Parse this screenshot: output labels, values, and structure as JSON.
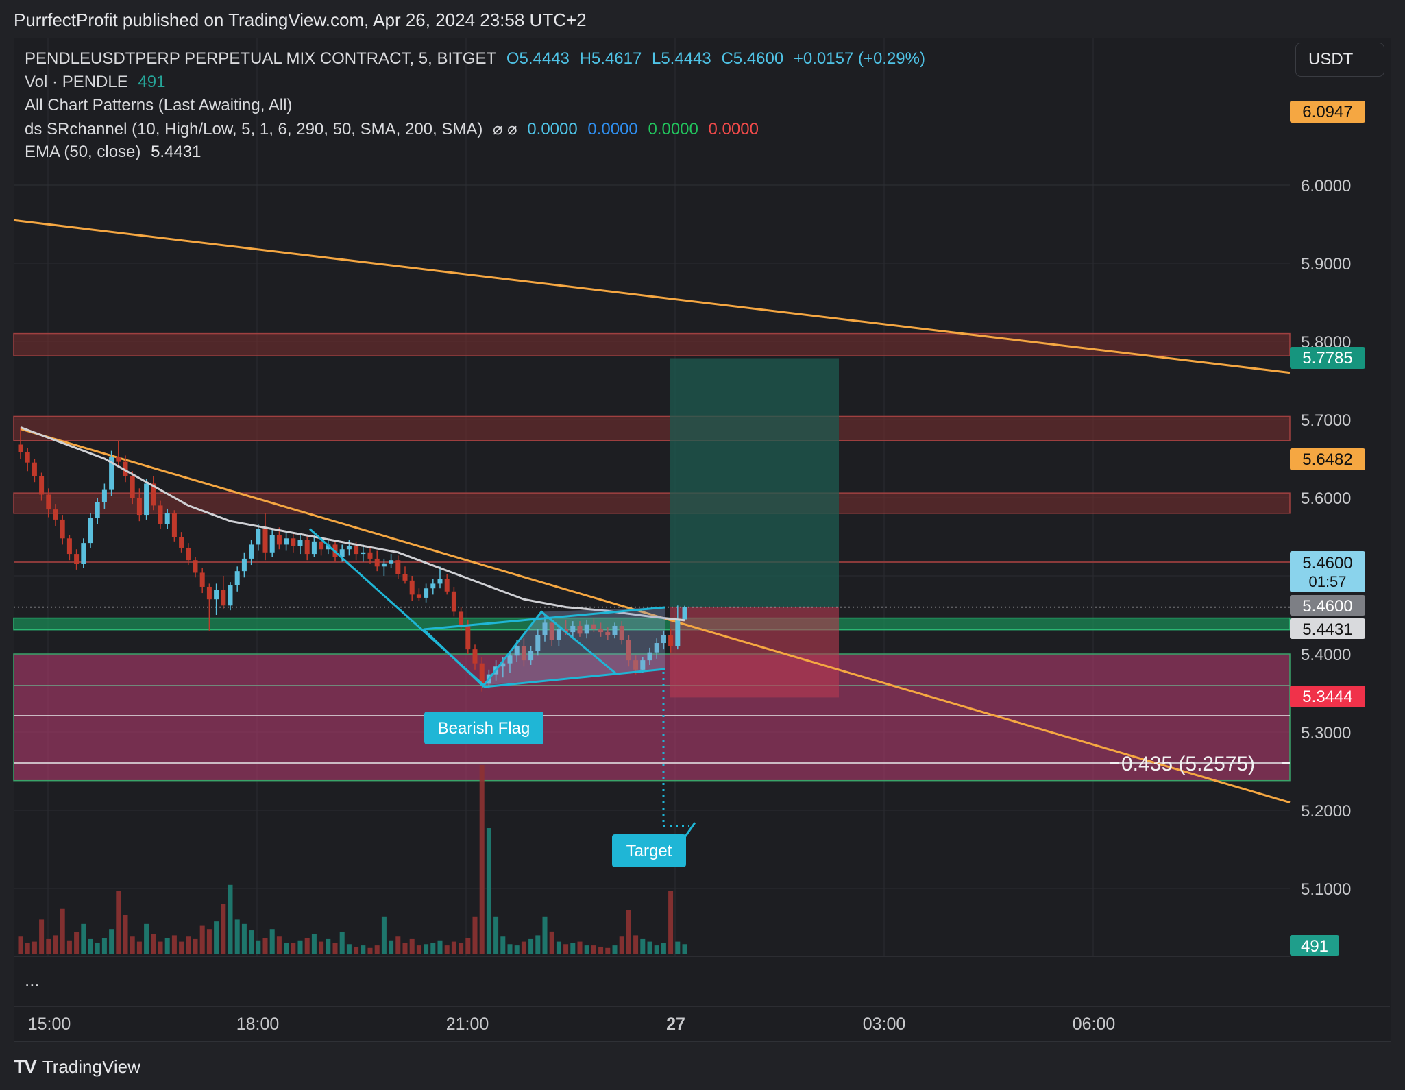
{
  "publisher": "PurrfectProfit published on TradingView.com, Apr 26, 2024 23:58 UTC+2",
  "header": {
    "symbol": "PENDLEUSDTPERP PERPETUAL MIX CONTRACT, 5, BITGET",
    "open": "O5.4443",
    "high": "H5.4617",
    "low": "L5.4443",
    "close": "C5.4600",
    "change": "+0.0157 (+0.29%)",
    "vol_label": "Vol · PENDLE",
    "vol_value": "491",
    "patterns": "All Chart Patterns (Last Awaiting, All)",
    "sr_label": "ds SRchannel (10, High/Low, 5, 1, 6, 290, 50, SMA, 200, SMA)",
    "sr_icons": "⌀ ⌀",
    "sr_v1": "0.0000",
    "sr_v2": "0.0000",
    "sr_v3": "0.0000",
    "sr_v4": "0.0000",
    "ema_label": "EMA (50, close)",
    "ema_value": "5.4431"
  },
  "currency": "USDT",
  "more": "...",
  "brand": "TradingView",
  "colors": {
    "up": "#5bc0de",
    "down": "#c0392b",
    "trendline": "#f5a742",
    "pattern": "#1fb6d6",
    "ema": "#cfd0d4",
    "support_band": "#b03a6e",
    "resistance_band": "#7a2f2f",
    "green_band": "#1a8a55",
    "long_profit": "#1e5b50",
    "long_stop": "#b73a52"
  },
  "chart_data": {
    "type": "candlestick",
    "timeframe": "5",
    "x_tick_labels": [
      "15:00",
      "18:00",
      "21:00",
      "27",
      "03:00",
      "06:00"
    ],
    "y_tick_labels": [
      "6.0000",
      "5.9000",
      "5.8000",
      "5.7000",
      "5.6000",
      "5.4000",
      "5.3000",
      "5.2000",
      "5.1000"
    ],
    "ylim": [
      5.0,
      6.2
    ],
    "price_labels": [
      {
        "text": "6.0947",
        "value": 6.0947,
        "color": "#f5a742"
      },
      {
        "text": "5.7785",
        "value": 5.7785,
        "color": "#16957e"
      },
      {
        "text": "5.6482",
        "value": 5.6482,
        "color": "#f5a742"
      },
      {
        "text": "5.4600",
        "value": 5.46,
        "color": "#8ad3ec",
        "sub": "01:57"
      },
      {
        "text": "5.4600",
        "value": 5.46,
        "color": "#7d7f85"
      },
      {
        "text": "5.4431",
        "value": 5.4431,
        "color": "#d9dadd"
      },
      {
        "text": "5.3444",
        "value": 5.3444,
        "color": "#f0324a"
      }
    ],
    "volume_label": "491",
    "fib_label": "0.435 (5.2575)",
    "pattern_label": "Bearish Flag",
    "target_label": "Target",
    "candles": [
      {
        "t": 0,
        "o": 5.668,
        "h": 5.69,
        "l": 5.65,
        "c": 5.658
      },
      {
        "t": 1,
        "o": 5.658,
        "h": 5.664,
        "l": 5.634,
        "c": 5.645
      },
      {
        "t": 2,
        "o": 5.645,
        "h": 5.65,
        "l": 5.62,
        "c": 5.628
      },
      {
        "t": 3,
        "o": 5.628,
        "h": 5.632,
        "l": 5.596,
        "c": 5.604
      },
      {
        "t": 4,
        "o": 5.604,
        "h": 5.612,
        "l": 5.575,
        "c": 5.585
      },
      {
        "t": 5,
        "o": 5.585,
        "h": 5.592,
        "l": 5.564,
        "c": 5.572
      },
      {
        "t": 6,
        "o": 5.572,
        "h": 5.578,
        "l": 5.54,
        "c": 5.548
      },
      {
        "t": 7,
        "o": 5.548,
        "h": 5.552,
        "l": 5.52,
        "c": 5.528
      },
      {
        "t": 8,
        "o": 5.528,
        "h": 5.534,
        "l": 5.508,
        "c": 5.515
      },
      {
        "t": 9,
        "o": 5.515,
        "h": 5.548,
        "l": 5.51,
        "c": 5.542
      },
      {
        "t": 10,
        "o": 5.542,
        "h": 5.58,
        "l": 5.536,
        "c": 5.574
      },
      {
        "t": 11,
        "o": 5.574,
        "h": 5.6,
        "l": 5.566,
        "c": 5.594
      },
      {
        "t": 12,
        "o": 5.594,
        "h": 5.618,
        "l": 5.586,
        "c": 5.61
      },
      {
        "t": 13,
        "o": 5.61,
        "h": 5.66,
        "l": 5.602,
        "c": 5.652
      },
      {
        "t": 14,
        "o": 5.652,
        "h": 5.672,
        "l": 5.64,
        "c": 5.646
      },
      {
        "t": 15,
        "o": 5.646,
        "h": 5.654,
        "l": 5.62,
        "c": 5.628
      },
      {
        "t": 16,
        "o": 5.628,
        "h": 5.634,
        "l": 5.592,
        "c": 5.6
      },
      {
        "t": 17,
        "o": 5.6,
        "h": 5.612,
        "l": 5.57,
        "c": 5.578
      },
      {
        "t": 18,
        "o": 5.578,
        "h": 5.624,
        "l": 5.572,
        "c": 5.618
      },
      {
        "t": 19,
        "o": 5.618,
        "h": 5.628,
        "l": 5.584,
        "c": 5.59
      },
      {
        "t": 20,
        "o": 5.59,
        "h": 5.596,
        "l": 5.56,
        "c": 5.566
      },
      {
        "t": 21,
        "o": 5.566,
        "h": 5.586,
        "l": 5.56,
        "c": 5.58
      },
      {
        "t": 22,
        "o": 5.58,
        "h": 5.584,
        "l": 5.544,
        "c": 5.55
      },
      {
        "t": 23,
        "o": 5.55,
        "h": 5.556,
        "l": 5.53,
        "c": 5.536
      },
      {
        "t": 24,
        "o": 5.536,
        "h": 5.542,
        "l": 5.514,
        "c": 5.52
      },
      {
        "t": 25,
        "o": 5.52,
        "h": 5.524,
        "l": 5.498,
        "c": 5.504
      },
      {
        "t": 26,
        "o": 5.504,
        "h": 5.51,
        "l": 5.478,
        "c": 5.486
      },
      {
        "t": 27,
        "o": 5.486,
        "h": 5.49,
        "l": 5.43,
        "c": 5.47
      },
      {
        "t": 28,
        "o": 5.47,
        "h": 5.49,
        "l": 5.45,
        "c": 5.482
      },
      {
        "t": 29,
        "o": 5.482,
        "h": 5.5,
        "l": 5.458,
        "c": 5.462
      },
      {
        "t": 30,
        "o": 5.462,
        "h": 5.492,
        "l": 5.456,
        "c": 5.488
      },
      {
        "t": 31,
        "o": 5.488,
        "h": 5.512,
        "l": 5.48,
        "c": 5.506
      },
      {
        "t": 32,
        "o": 5.506,
        "h": 5.53,
        "l": 5.498,
        "c": 5.522
      },
      {
        "t": 33,
        "o": 5.522,
        "h": 5.546,
        "l": 5.514,
        "c": 5.54
      },
      {
        "t": 34,
        "o": 5.54,
        "h": 5.566,
        "l": 5.532,
        "c": 5.56
      },
      {
        "t": 35,
        "o": 5.56,
        "h": 5.58,
        "l": 5.52,
        "c": 5.53
      },
      {
        "t": 36,
        "o": 5.53,
        "h": 5.56,
        "l": 5.524,
        "c": 5.552
      },
      {
        "t": 37,
        "o": 5.552,
        "h": 5.562,
        "l": 5.534,
        "c": 5.54
      },
      {
        "t": 38,
        "o": 5.54,
        "h": 5.556,
        "l": 5.532,
        "c": 5.548
      },
      {
        "t": 39,
        "o": 5.548,
        "h": 5.556,
        "l": 5.53,
        "c": 5.538
      },
      {
        "t": 40,
        "o": 5.538,
        "h": 5.554,
        "l": 5.528,
        "c": 5.546
      },
      {
        "t": 41,
        "o": 5.546,
        "h": 5.552,
        "l": 5.52,
        "c": 5.528
      },
      {
        "t": 42,
        "o": 5.528,
        "h": 5.552,
        "l": 5.524,
        "c": 5.544
      },
      {
        "t": 43,
        "o": 5.544,
        "h": 5.55,
        "l": 5.526,
        "c": 5.534
      },
      {
        "t": 44,
        "o": 5.534,
        "h": 5.546,
        "l": 5.528,
        "c": 5.54
      },
      {
        "t": 45,
        "o": 5.54,
        "h": 5.546,
        "l": 5.518,
        "c": 5.524
      },
      {
        "t": 46,
        "o": 5.524,
        "h": 5.54,
        "l": 5.518,
        "c": 5.534
      },
      {
        "t": 47,
        "o": 5.534,
        "h": 5.546,
        "l": 5.526,
        "c": 5.538
      },
      {
        "t": 48,
        "o": 5.538,
        "h": 5.544,
        "l": 5.52,
        "c": 5.528
      },
      {
        "t": 49,
        "o": 5.528,
        "h": 5.54,
        "l": 5.518,
        "c": 5.53
      },
      {
        "t": 50,
        "o": 5.53,
        "h": 5.538,
        "l": 5.516,
        "c": 5.522
      },
      {
        "t": 51,
        "o": 5.522,
        "h": 5.532,
        "l": 5.506,
        "c": 5.512
      },
      {
        "t": 52,
        "o": 5.512,
        "h": 5.522,
        "l": 5.5,
        "c": 5.516
      },
      {
        "t": 53,
        "o": 5.516,
        "h": 5.528,
        "l": 5.51,
        "c": 5.52
      },
      {
        "t": 54,
        "o": 5.52,
        "h": 5.526,
        "l": 5.496,
        "c": 5.502
      },
      {
        "t": 55,
        "o": 5.502,
        "h": 5.512,
        "l": 5.49,
        "c": 5.494
      },
      {
        "t": 56,
        "o": 5.494,
        "h": 5.5,
        "l": 5.468,
        "c": 5.476
      },
      {
        "t": 57,
        "o": 5.476,
        "h": 5.484,
        "l": 5.468,
        "c": 5.472
      },
      {
        "t": 58,
        "o": 5.472,
        "h": 5.49,
        "l": 5.466,
        "c": 5.484
      },
      {
        "t": 59,
        "o": 5.484,
        "h": 5.496,
        "l": 5.476,
        "c": 5.49
      },
      {
        "t": 60,
        "o": 5.49,
        "h": 5.512,
        "l": 5.484,
        "c": 5.496
      },
      {
        "t": 61,
        "o": 5.496,
        "h": 5.502,
        "l": 5.476,
        "c": 5.48
      },
      {
        "t": 62,
        "o": 5.48,
        "h": 5.486,
        "l": 5.448,
        "c": 5.454
      },
      {
        "t": 63,
        "o": 5.454,
        "h": 5.46,
        "l": 5.43,
        "c": 5.436
      },
      {
        "t": 64,
        "o": 5.436,
        "h": 5.444,
        "l": 5.4,
        "c": 5.406
      },
      {
        "t": 65,
        "o": 5.406,
        "h": 5.412,
        "l": 5.38,
        "c": 5.388
      },
      {
        "t": 66,
        "o": 5.388,
        "h": 5.396,
        "l": 5.352,
        "c": 5.362
      },
      {
        "t": 67,
        "o": 5.362,
        "h": 5.38,
        "l": 5.356,
        "c": 5.374
      },
      {
        "t": 68,
        "o": 5.374,
        "h": 5.392,
        "l": 5.366,
        "c": 5.384
      },
      {
        "t": 69,
        "o": 5.384,
        "h": 5.396,
        "l": 5.37,
        "c": 5.388
      },
      {
        "t": 70,
        "o": 5.388,
        "h": 5.404,
        "l": 5.376,
        "c": 5.398
      },
      {
        "t": 71,
        "o": 5.398,
        "h": 5.418,
        "l": 5.39,
        "c": 5.41
      },
      {
        "t": 72,
        "o": 5.41,
        "h": 5.42,
        "l": 5.384,
        "c": 5.392
      },
      {
        "t": 73,
        "o": 5.392,
        "h": 5.41,
        "l": 5.386,
        "c": 5.404
      },
      {
        "t": 74,
        "o": 5.404,
        "h": 5.432,
        "l": 5.398,
        "c": 5.424
      },
      {
        "t": 75,
        "o": 5.424,
        "h": 5.448,
        "l": 5.416,
        "c": 5.44
      },
      {
        "t": 76,
        "o": 5.44,
        "h": 5.446,
        "l": 5.41,
        "c": 5.418
      },
      {
        "t": 77,
        "o": 5.418,
        "h": 5.438,
        "l": 5.41,
        "c": 5.432
      },
      {
        "t": 78,
        "o": 5.432,
        "h": 5.444,
        "l": 5.424,
        "c": 5.428
      },
      {
        "t": 79,
        "o": 5.428,
        "h": 5.442,
        "l": 5.42,
        "c": 5.436
      },
      {
        "t": 80,
        "o": 5.436,
        "h": 5.442,
        "l": 5.422,
        "c": 5.426
      },
      {
        "t": 81,
        "o": 5.426,
        "h": 5.444,
        "l": 5.42,
        "c": 5.438
      },
      {
        "t": 82,
        "o": 5.438,
        "h": 5.446,
        "l": 5.428,
        "c": 5.432
      },
      {
        "t": 83,
        "o": 5.432,
        "h": 5.44,
        "l": 5.422,
        "c": 5.428
      },
      {
        "t": 84,
        "o": 5.428,
        "h": 5.434,
        "l": 5.418,
        "c": 5.424
      },
      {
        "t": 85,
        "o": 5.424,
        "h": 5.44,
        "l": 5.42,
        "c": 5.436
      },
      {
        "t": 86,
        "o": 5.436,
        "h": 5.442,
        "l": 5.412,
        "c": 5.418
      },
      {
        "t": 87,
        "o": 5.418,
        "h": 5.424,
        "l": 5.384,
        "c": 5.392
      },
      {
        "t": 88,
        "o": 5.392,
        "h": 5.398,
        "l": 5.374,
        "c": 5.38
      },
      {
        "t": 89,
        "o": 5.38,
        "h": 5.396,
        "l": 5.376,
        "c": 5.392
      },
      {
        "t": 90,
        "o": 5.392,
        "h": 5.408,
        "l": 5.386,
        "c": 5.402
      },
      {
        "t": 91,
        "o": 5.402,
        "h": 5.42,
        "l": 5.394,
        "c": 5.414
      },
      {
        "t": 92,
        "o": 5.414,
        "h": 5.43,
        "l": 5.406,
        "c": 5.424
      },
      {
        "t": 93,
        "o": 5.424,
        "h": 5.432,
        "l": 5.402,
        "c": 5.41
      },
      {
        "t": 94,
        "o": 5.41,
        "h": 5.462,
        "l": 5.406,
        "c": 5.444
      },
      {
        "t": 95,
        "o": 5.4443,
        "h": 5.4617,
        "l": 5.4443,
        "c": 5.46
      }
    ],
    "volume": [
      28,
      18,
      20,
      55,
      24,
      30,
      72,
      22,
      35,
      48,
      24,
      18,
      26,
      40,
      100,
      62,
      28,
      20,
      48,
      32,
      20,
      25,
      30,
      20,
      28,
      24,
      45,
      40,
      52,
      80,
      110,
      55,
      48,
      38,
      22,
      25,
      40,
      28,
      18,
      18,
      22,
      26,
      32,
      20,
      24,
      18,
      35,
      16,
      12,
      14,
      10,
      14,
      60,
      22,
      28,
      18,
      24,
      14,
      16,
      18,
      22,
      14,
      20,
      18,
      26,
      60,
      300,
      200,
      60,
      28,
      16,
      14,
      20,
      24,
      30,
      60,
      36,
      20,
      16,
      18,
      20,
      14,
      14,
      12,
      10,
      14,
      28,
      70,
      30,
      24,
      20,
      14,
      18,
      100,
      20,
      16
    ],
    "ema_50": [
      [
        0,
        5.69
      ],
      [
        6,
        5.67
      ],
      [
        12,
        5.65
      ],
      [
        18,
        5.62
      ],
      [
        24,
        5.59
      ],
      [
        30,
        5.57
      ],
      [
        36,
        5.56
      ],
      [
        42,
        5.55
      ],
      [
        48,
        5.54
      ],
      [
        54,
        5.53
      ],
      [
        60,
        5.51
      ],
      [
        66,
        5.49
      ],
      [
        72,
        5.47
      ],
      [
        78,
        5.46
      ],
      [
        84,
        5.455
      ],
      [
        90,
        5.448
      ],
      [
        95,
        5.4431
      ]
    ],
    "trendlines": [
      {
        "from": [
          -999,
          5.955
        ],
        "to": [
          1434,
          5.76
        ]
      },
      {
        "from": [
          0,
          5.688
        ],
        "to": [
          1434,
          5.21
        ]
      }
    ],
    "sr_zones": [
      {
        "from": 5.7815,
        "to": 5.81,
        "kind": "resistance"
      },
      {
        "from": 5.673,
        "to": 5.704,
        "kind": "resistance"
      },
      {
        "from": 5.58,
        "to": 5.606,
        "kind": "resistance"
      },
      {
        "from": 5.431,
        "to": 5.446,
        "kind": "support"
      },
      {
        "from": 5.238,
        "to": 5.4,
        "kind": "support"
      }
    ],
    "long_position": {
      "entry": 5.46,
      "target": 5.7785,
      "stop": 5.3444
    },
    "bearish_flag": {
      "pole_top": 5.56,
      "pole_bottom": 5.36,
      "flag_high": 5.46,
      "flag_low": 5.374
    }
  }
}
